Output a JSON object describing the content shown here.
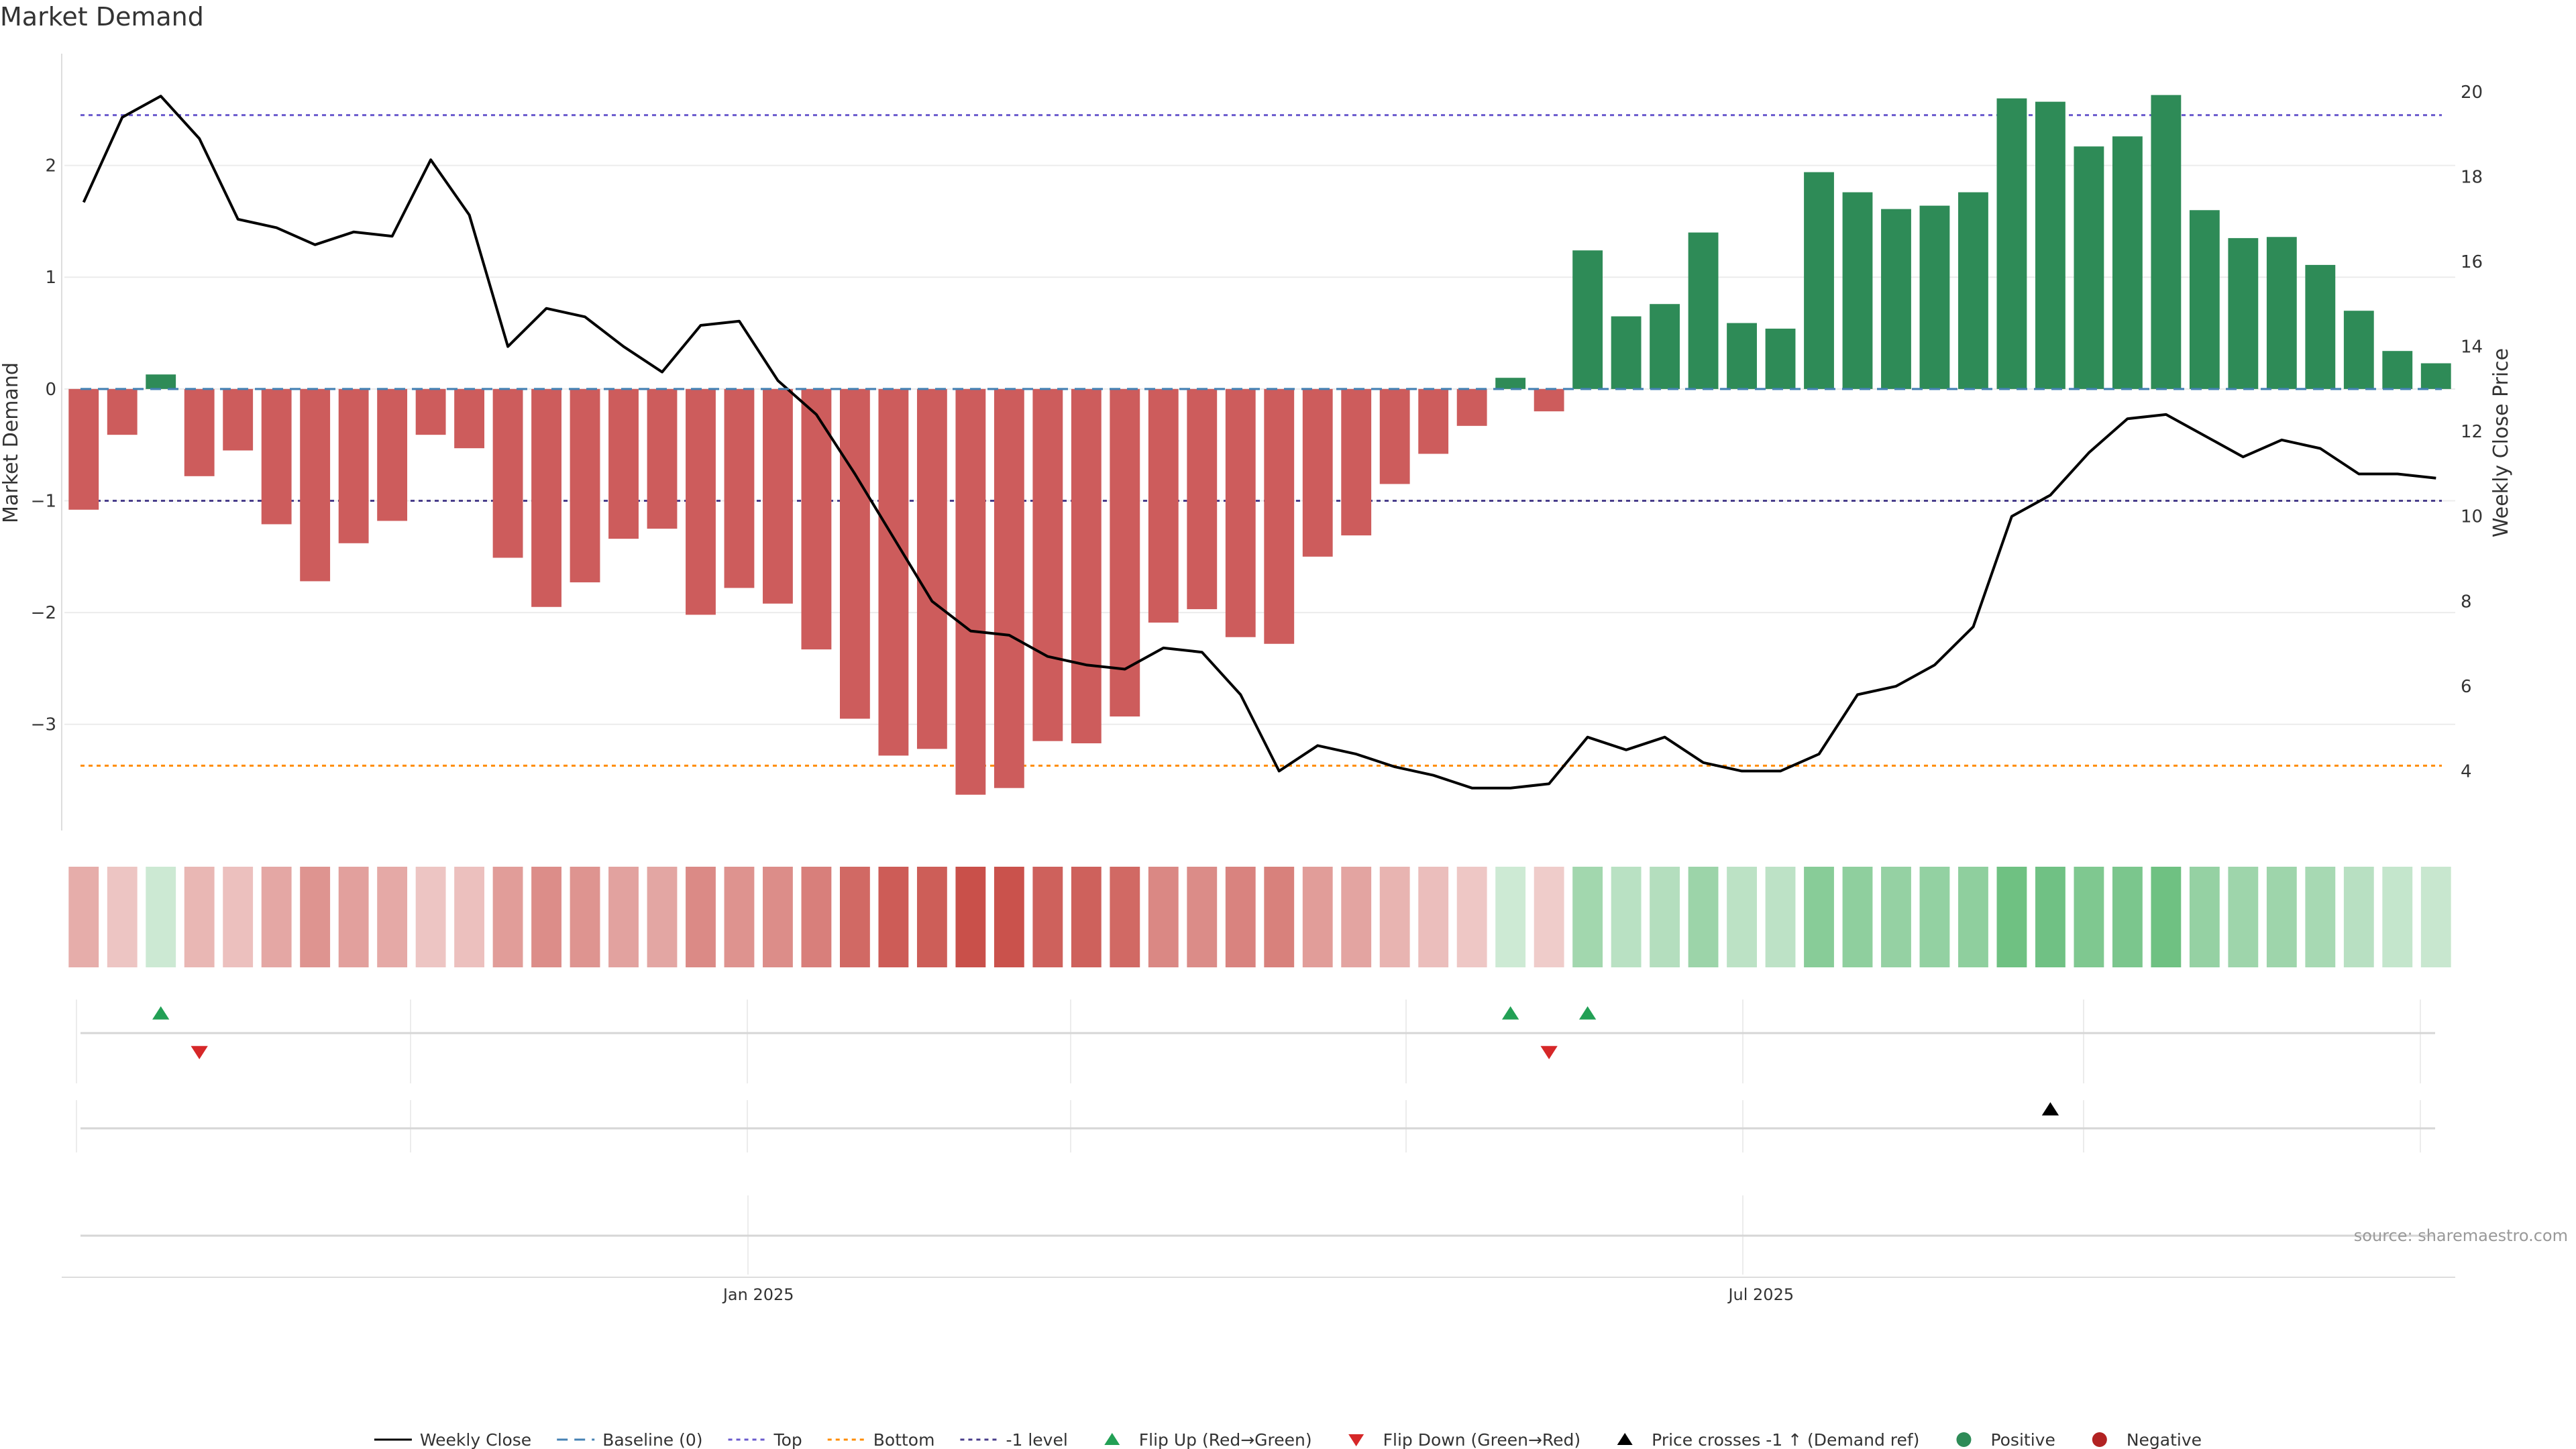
{
  "chart_data": {
    "type": "bar",
    "title": "Market Demand",
    "ylabel_left": "Market Demand",
    "ylabel_right": "Weekly Close Price",
    "source": "source: sharemaestro.com",
    "ylim_left": [
      -3.95,
      3.0
    ],
    "ylim_right": [
      2.6,
      20.9
    ],
    "yticks_left": [
      2,
      1,
      0,
      -1,
      -2,
      -3
    ],
    "yticks_left_labels": [
      "2",
      "1",
      "0",
      "−1",
      "−2",
      "−3"
    ],
    "yticks_right": [
      20,
      18,
      16,
      14,
      12,
      10,
      8,
      6,
      4
    ],
    "xtick_labels": [
      {
        "index": 17.5,
        "label": "Jan 2025"
      },
      {
        "index": 43.5,
        "label": "Jul 2025"
      }
    ],
    "reference_lines": {
      "top": 2.45,
      "bottom": -3.37,
      "minus_one": -1,
      "baseline": 0
    },
    "colors": {
      "positive": "#2e8b57",
      "negative": "#cd5c5c",
      "price": "#000000",
      "top": "#6a5acd",
      "bottom": "#ff8c00",
      "baseline": "#4682b4",
      "minus_one": "#483d8b",
      "flip_up": "#22a055",
      "flip_down": "#d62728"
    },
    "series": [
      {
        "name": "Market Demand",
        "values": [
          -1.08,
          -0.41,
          0.13,
          -0.78,
          -0.55,
          -1.21,
          -1.72,
          -1.38,
          -1.18,
          -0.41,
          -0.53,
          -1.51,
          -1.95,
          -1.73,
          -1.34,
          -1.25,
          -2.02,
          -1.78,
          -1.92,
          -2.33,
          -2.95,
          -3.28,
          -3.22,
          -3.63,
          -3.57,
          -3.15,
          -3.17,
          -2.93,
          -2.09,
          -1.97,
          -2.22,
          -2.28,
          -1.5,
          -1.31,
          -0.85,
          -0.58,
          -0.33,
          0.1,
          -0.2,
          1.24,
          0.65,
          0.76,
          1.4,
          0.59,
          0.54,
          1.94,
          1.76,
          1.61,
          1.64,
          1.76,
          2.6,
          2.57,
          2.17,
          2.26,
          2.63,
          1.6,
          1.35,
          1.36,
          1.11,
          0.7,
          0.34,
          0.23
        ]
      },
      {
        "name": "Weekly Close",
        "values": [
          17.4,
          19.4,
          19.9,
          18.9,
          17.0,
          16.8,
          16.4,
          16.7,
          16.6,
          18.4,
          17.1,
          14.0,
          14.9,
          14.7,
          14.0,
          13.4,
          14.5,
          14.6,
          13.2,
          12.4,
          11.0,
          9.5,
          8.0,
          7.3,
          7.2,
          6.7,
          6.5,
          6.4,
          6.9,
          6.8,
          5.8,
          4.0,
          4.6,
          4.4,
          4.1,
          3.9,
          3.6,
          3.6,
          3.7,
          4.8,
          4.5,
          4.8,
          4.2,
          4.0,
          4.0,
          4.4,
          5.8,
          6.0,
          6.5,
          7.4,
          10.0,
          10.5,
          11.5,
          12.3,
          12.4,
          11.9,
          11.4,
          11.8,
          11.6,
          11.0,
          11.0,
          10.9
        ]
      }
    ],
    "flip_up_indices": [
      2,
      37,
      39
    ],
    "flip_down_indices": [
      3,
      38
    ],
    "price_cross_indices": [
      51
    ],
    "legend": [
      {
        "label": "Weekly Close",
        "marker": "line-solid",
        "color": "#000000"
      },
      {
        "label": "Baseline (0)",
        "marker": "line-dashed",
        "color": "#4682b4"
      },
      {
        "label": "Top",
        "marker": "line-dotted",
        "color": "#6a5acd"
      },
      {
        "label": "Bottom",
        "marker": "line-dotted",
        "color": "#ff8c00"
      },
      {
        "label": "-1 level",
        "marker": "line-dotted",
        "color": "#483d8b"
      },
      {
        "label": "Flip Up (Red→Green)",
        "marker": "triangle-up",
        "color": "#22a055"
      },
      {
        "label": "Flip Down (Green→Red)",
        "marker": "triangle-down",
        "color": "#d62728"
      },
      {
        "label": "Price crosses -1 ↑ (Demand ref)",
        "marker": "triangle-up",
        "color": "#000000"
      },
      {
        "label": "Positive",
        "marker": "circle",
        "color": "#2e8b57"
      },
      {
        "label": "Negative",
        "marker": "circle",
        "color": "#b22222"
      }
    ],
    "legend_position": "bottom-center"
  }
}
